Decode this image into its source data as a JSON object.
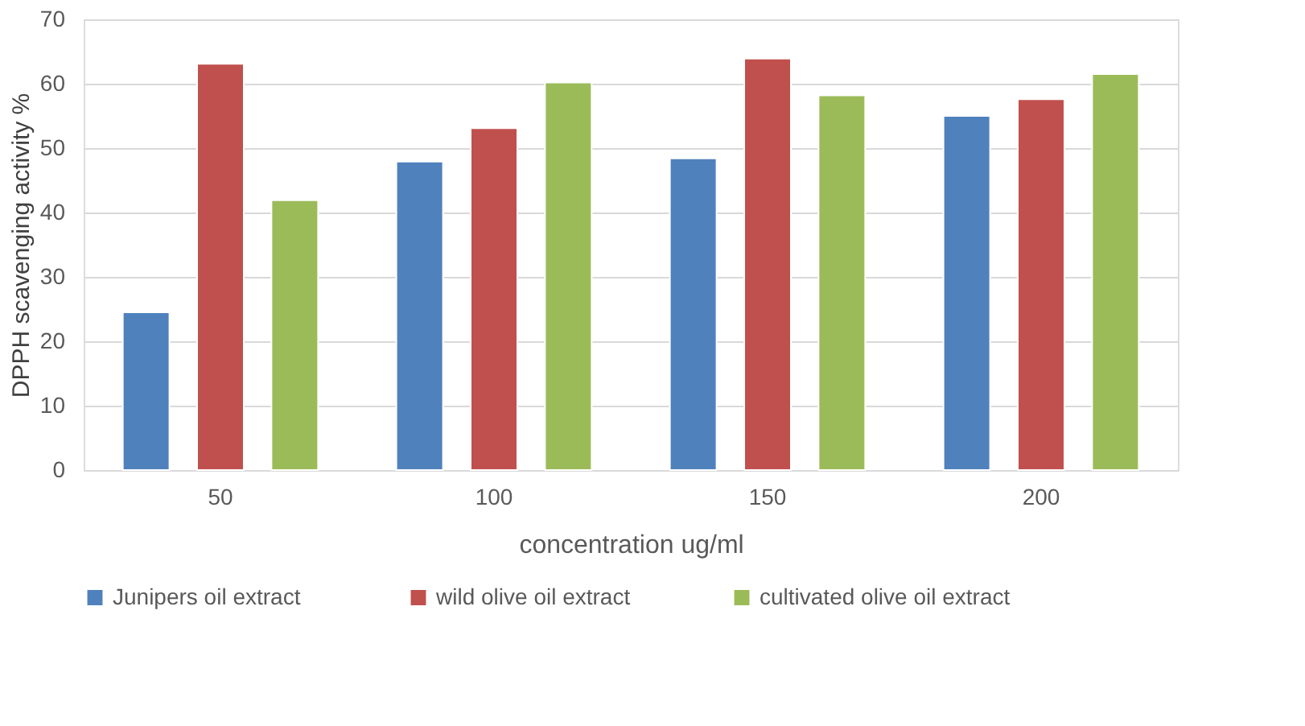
{
  "chart_data": {
    "type": "bar",
    "xlabel": "concentration ug/ml",
    "ylabel": "DPPH scavenging activity %",
    "categories": [
      "50",
      "100",
      "150",
      "200"
    ],
    "series": [
      {
        "name": "Junipers oil  extract",
        "color": "#4f81bd",
        "values": [
          24.5,
          47.9,
          48.4,
          55.0
        ]
      },
      {
        "name": "wild olive oil extract",
        "color": "#c0504d",
        "values": [
          63.1,
          53.1,
          63.9,
          57.6
        ]
      },
      {
        "name": "cultivated olive oil extract",
        "color": "#9bbb59",
        "values": [
          41.9,
          60.2,
          58.2,
          61.5
        ]
      }
    ],
    "ylim": [
      0,
      70
    ],
    "yticks": [
      0,
      10,
      20,
      30,
      40,
      50,
      60,
      70
    ],
    "grid": "y",
    "legend": "bottom"
  }
}
